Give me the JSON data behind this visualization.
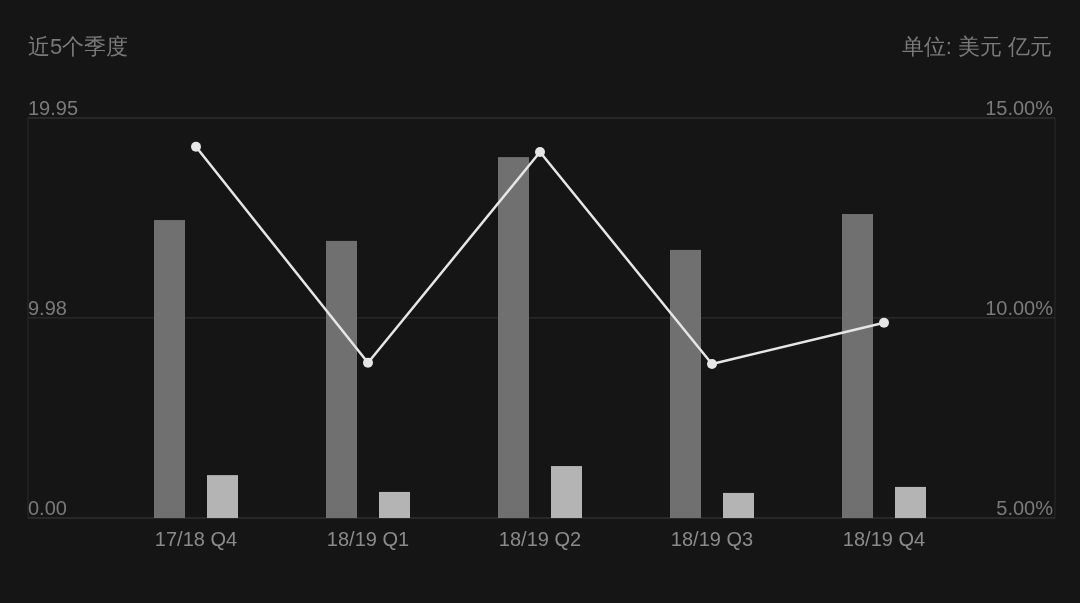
{
  "chart_data": {
    "type": "bar",
    "title": "近5个季度",
    "annotations": [
      "单位: 美元 亿元"
    ],
    "categories": [
      "17/18 Q4",
      "18/19 Q1",
      "18/19 Q2",
      "18/19 Q3",
      "18/19 Q4"
    ],
    "series": [
      {
        "color": "#707070",
        "values": [
          14.86,
          13.82,
          18.0,
          13.37,
          15.16
        ]
      },
      {
        "color": "#b4b4b4",
        "values": [
          2.14,
          1.3,
          2.59,
          1.25,
          1.55
        ]
      },
      {
        "type": "line",
        "axis": "y2",
        "color": "#e6e6e6",
        "marker": "circle",
        "values": [
          14.28,
          8.88,
          14.15,
          8.85,
          9.88
        ]
      }
    ],
    "ylim": [
      0,
      19.95
    ],
    "yticks": [
      {
        "value": 0,
        "label": "0.00"
      },
      {
        "value": 9.98,
        "label": "9.98"
      },
      {
        "value": 19.95,
        "label": "19.95"
      }
    ],
    "y2lim": [
      5,
      15
    ],
    "y2ticks": [
      {
        "value": 5,
        "label": "5.00%"
      },
      {
        "value": 10,
        "label": "10.00%"
      },
      {
        "value": 15,
        "label": "15.00%"
      }
    ],
    "grid": "y"
  }
}
